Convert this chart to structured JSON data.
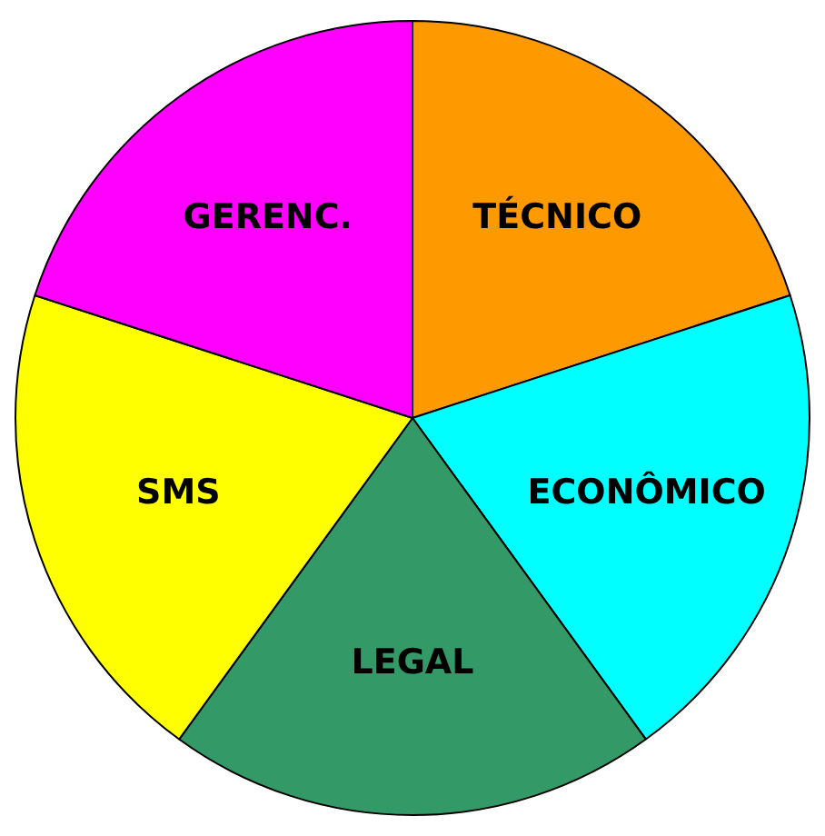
{
  "chart_data": {
    "type": "pie",
    "categories": [
      "TÉCNICO",
      "ECONÔMICO",
      "LEGAL",
      "SMS",
      "GERENC."
    ],
    "values": [
      20,
      20,
      20,
      20,
      20
    ],
    "colors": [
      "#ff9900",
      "#00ffff",
      "#339966",
      "#ffff00",
      "#ff00ff"
    ],
    "legend": false
  }
}
